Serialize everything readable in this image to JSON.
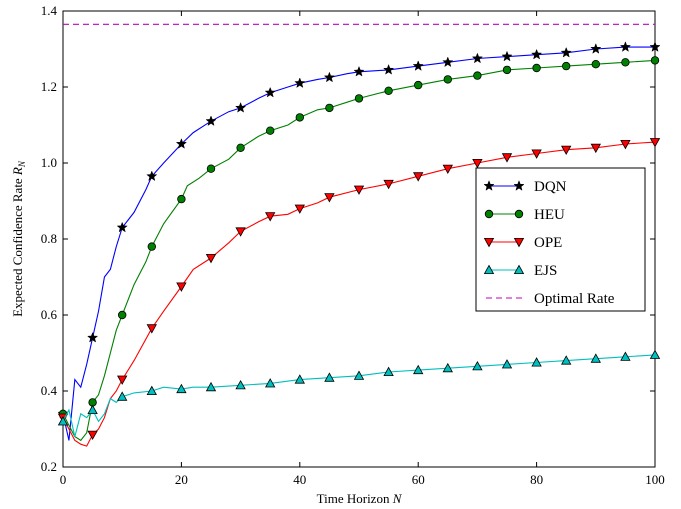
{
  "chart_data": {
    "type": "line",
    "xlabel_text": "Time Horizon ",
    "xlabel_var": "N",
    "ylabel_text": "Expected Confidence Rate ",
    "ylabel_var": "R",
    "ylabel_sub": "N",
    "xlim": [
      0,
      100
    ],
    "ylim": [
      0.2,
      1.4
    ],
    "xticks": [
      "0",
      "20",
      "40",
      "60",
      "80",
      "100"
    ],
    "yticks": [
      "0.2",
      "0.4",
      "0.6",
      "0.8",
      "1.0",
      "1.2",
      "1.4"
    ],
    "grid": false,
    "legend_position": "center-right",
    "series": [
      {
        "name": "DQN",
        "color": "#0000ff",
        "marker": "star",
        "dash": "",
        "x": [
          0,
          1,
          2,
          3,
          4,
          5,
          6,
          7,
          8,
          9,
          10,
          12,
          14,
          15,
          17,
          20,
          22,
          25,
          28,
          30,
          33,
          35,
          38,
          40,
          43,
          45,
          48,
          50,
          55,
          60,
          65,
          70,
          75,
          80,
          85,
          90,
          95,
          100
        ],
        "y": [
          0.34,
          0.27,
          0.43,
          0.41,
          0.47,
          0.54,
          0.61,
          0.7,
          0.72,
          0.78,
          0.83,
          0.87,
          0.93,
          0.965,
          1.0,
          1.05,
          1.08,
          1.11,
          1.135,
          1.145,
          1.17,
          1.185,
          1.2,
          1.21,
          1.22,
          1.225,
          1.235,
          1.24,
          1.245,
          1.255,
          1.265,
          1.275,
          1.28,
          1.285,
          1.29,
          1.3,
          1.305,
          1.305
        ]
      },
      {
        "name": "HEU",
        "color": "#008000",
        "marker": "circle",
        "dash": "",
        "x": [
          0,
          1,
          2,
          3,
          4,
          5,
          6,
          7,
          8,
          9,
          10,
          12,
          14,
          15,
          17,
          20,
          21,
          23,
          25,
          28,
          30,
          33,
          35,
          38,
          40,
          43,
          45,
          48,
          50,
          55,
          60,
          65,
          70,
          75,
          80,
          85,
          90,
          95,
          100
        ],
        "y": [
          0.34,
          0.31,
          0.28,
          0.27,
          0.29,
          0.37,
          0.39,
          0.44,
          0.5,
          0.56,
          0.6,
          0.68,
          0.74,
          0.78,
          0.84,
          0.905,
          0.94,
          0.96,
          0.985,
          1.01,
          1.04,
          1.07,
          1.085,
          1.1,
          1.12,
          1.14,
          1.145,
          1.16,
          1.17,
          1.19,
          1.205,
          1.22,
          1.23,
          1.245,
          1.25,
          1.255,
          1.26,
          1.265,
          1.27
        ]
      },
      {
        "name": "OPE",
        "color": "#ff0000",
        "marker": "triangle-down",
        "dash": "",
        "x": [
          0,
          1,
          2,
          3,
          4,
          5,
          6,
          7,
          8,
          9,
          10,
          12,
          15,
          17,
          20,
          22,
          25,
          28,
          30,
          33,
          35,
          38,
          40,
          43,
          45,
          50,
          55,
          60,
          65,
          70,
          75,
          80,
          85,
          90,
          95,
          100
        ],
        "y": [
          0.33,
          0.3,
          0.27,
          0.26,
          0.255,
          0.285,
          0.3,
          0.33,
          0.38,
          0.4,
          0.43,
          0.48,
          0.565,
          0.61,
          0.675,
          0.72,
          0.75,
          0.79,
          0.82,
          0.845,
          0.86,
          0.865,
          0.88,
          0.895,
          0.91,
          0.93,
          0.945,
          0.965,
          0.985,
          1.0,
          1.015,
          1.025,
          1.035,
          1.04,
          1.05,
          1.055
        ]
      },
      {
        "name": "EJS",
        "color": "#00bfbf",
        "marker": "triangle-up",
        "dash": "",
        "x": [
          0,
          1,
          2,
          3,
          4,
          5,
          6,
          7,
          8,
          9,
          10,
          12,
          15,
          17,
          20,
          22,
          25,
          30,
          35,
          40,
          45,
          50,
          55,
          60,
          65,
          70,
          75,
          80,
          85,
          90,
          95,
          100
        ],
        "y": [
          0.32,
          0.35,
          0.28,
          0.34,
          0.33,
          0.35,
          0.32,
          0.34,
          0.38,
          0.37,
          0.385,
          0.395,
          0.4,
          0.41,
          0.405,
          0.41,
          0.41,
          0.415,
          0.42,
          0.43,
          0.435,
          0.44,
          0.45,
          0.455,
          0.46,
          0.465,
          0.47,
          0.475,
          0.48,
          0.485,
          0.49,
          0.495
        ]
      },
      {
        "name": "Optimal Rate",
        "color": "#bf00bf",
        "marker": "none",
        "dash": "6,4",
        "x": [
          0,
          100
        ],
        "y": [
          1.365,
          1.365
        ]
      }
    ]
  }
}
